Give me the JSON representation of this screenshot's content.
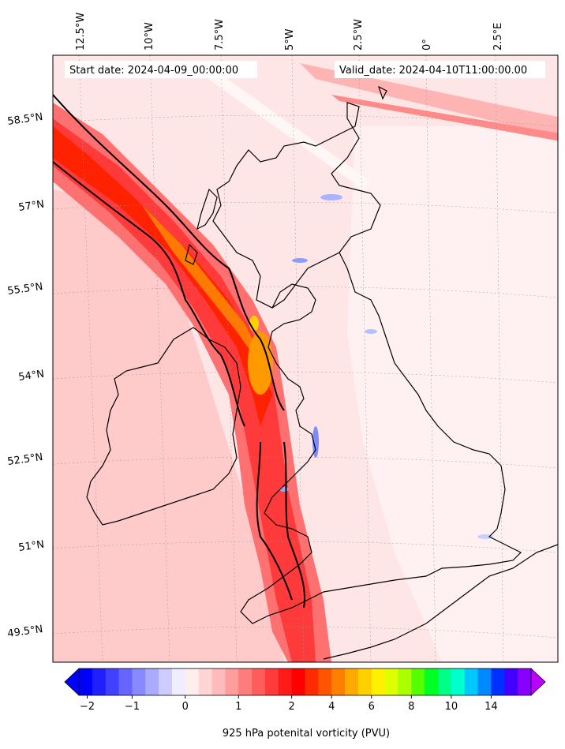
{
  "map": {
    "start_label": "Start date: 2024-04-09_00:00:00",
    "valid_label": "Valid_date: 2024-04-10T11:00:00.00",
    "lon_ticks": [
      "12.5°W",
      "10°W",
      "7.5°W",
      "5°W",
      "2.5°W",
      "0°",
      "2.5°E"
    ],
    "lat_ticks": [
      "58.5°N",
      "57°N",
      "55.5°N",
      "54°N",
      "52.5°N",
      "51°N",
      "49.5°N"
    ],
    "field": "925 hPa potenital vorticity (PVU)"
  },
  "colorbar": {
    "label": "925 hPa potenital vorticity (PVU)",
    "ticks": [
      "−2",
      "−1",
      "0",
      "1",
      "2",
      "4",
      "6",
      "8",
      "10",
      "14"
    ],
    "colors": [
      "#0000ff",
      "#2020ff",
      "#4040ff",
      "#6666ff",
      "#8888ff",
      "#aaaaff",
      "#ccccff",
      "#eeeeff",
      "#ffeeee",
      "#ffd6d6",
      "#ffbbbb",
      "#ff9c9c",
      "#ff7c7c",
      "#ff5c5c",
      "#ff3a3a",
      "#ff1a1a",
      "#ff0000",
      "#ff2a00",
      "#ff5500",
      "#ff8000",
      "#ffaa00",
      "#ffd000",
      "#fff000",
      "#ddff00",
      "#aaff00",
      "#55ff00",
      "#00ff22",
      "#00ff88",
      "#00ffcc",
      "#00c8ff",
      "#0088ff",
      "#0030ff",
      "#4400ff",
      "#8800ff"
    ],
    "extend_low": "#0000ff",
    "extend_high": "#bb00ff"
  }
}
